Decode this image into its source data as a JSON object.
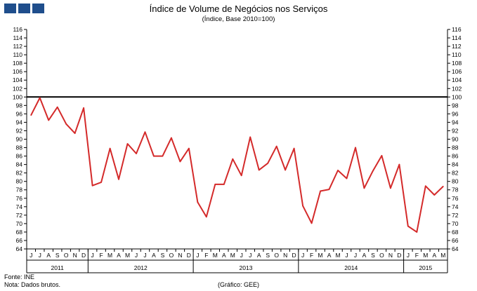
{
  "header": {
    "title": "Índice de Volume de Negócios nos Serviços",
    "subtitle": "(Índice, Base 2010=100)"
  },
  "footer": {
    "source": "Fonte: INE",
    "note": "Nota: Dados brutos.",
    "credit": "(Gráfico: GEE)"
  },
  "colors": {
    "logo": "#1f4e8c",
    "series": "#d42a2a",
    "reference": "#000000"
  },
  "icons": {
    "logo": "gee-logo-squares-icon"
  },
  "chart_data": {
    "type": "line",
    "title": "Índice de Volume de Negócios nos Serviços",
    "subtitle": "(Índice, Base 2010=100)",
    "ylim": [
      64,
      116
    ],
    "ystep": 2,
    "reference_line": 100,
    "grid": false,
    "yaxis": "both sides",
    "months": [
      "J",
      "J",
      "A",
      "S",
      "O",
      "N",
      "D",
      "J",
      "F",
      "M",
      "A",
      "M",
      "J",
      "J",
      "A",
      "S",
      "O",
      "N",
      "D",
      "J",
      "F",
      "M",
      "A",
      "M",
      "J",
      "J",
      "A",
      "S",
      "O",
      "N",
      "D",
      "J",
      "F",
      "M",
      "A",
      "M",
      "J",
      "J",
      "A",
      "S",
      "O",
      "N",
      "D",
      "J",
      "F",
      "M",
      "A",
      "M"
    ],
    "years": [
      {
        "label": "2011",
        "start": 0,
        "count": 7
      },
      {
        "label": "2012",
        "start": 7,
        "count": 12
      },
      {
        "label": "2013",
        "start": 19,
        "count": 12
      },
      {
        "label": "2014",
        "start": 31,
        "count": 12
      },
      {
        "label": "2015",
        "start": 43,
        "count": 5
      }
    ],
    "series": [
      {
        "values": [
          95.7,
          99.8,
          94.5,
          97.6,
          93.6,
          91.4,
          97.4,
          79.0,
          79.8,
          87.8,
          80.5,
          88.9,
          86.6,
          91.7,
          86.0,
          86.0,
          90.3,
          84.7,
          87.8,
          75.1,
          71.6,
          79.3,
          79.3,
          85.3,
          81.4,
          90.5,
          82.7,
          84.3,
          88.3,
          82.7,
          87.8,
          74.2,
          70.1,
          77.7,
          78.1,
          82.6,
          80.7,
          88.0,
          78.4,
          82.5,
          86.1,
          78.4,
          84.0,
          69.4,
          68.0,
          78.9,
          76.8,
          78.8
        ]
      }
    ]
  }
}
